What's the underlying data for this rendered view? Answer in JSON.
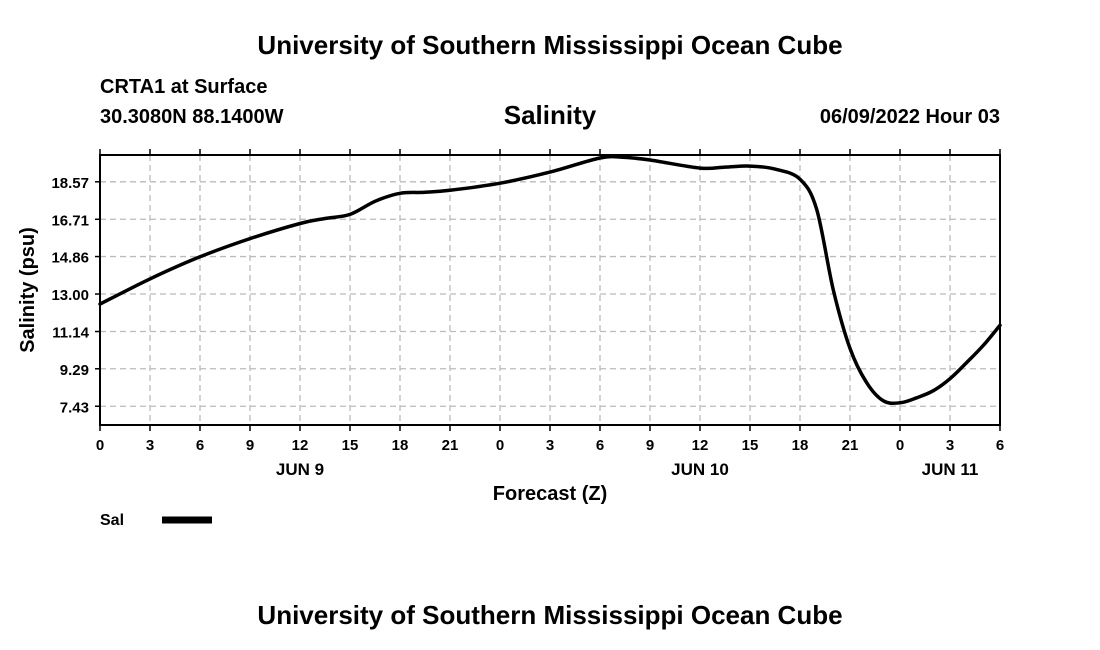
{
  "header": {
    "title": "University of Southern Mississippi Ocean Cube",
    "station": "CRTA1 at Surface",
    "coordinates": "30.3080N  88.1400W",
    "date_hour": "06/09/2022 Hour 03"
  },
  "footer": {
    "title": "University of Southern Mississippi Ocean Cube"
  },
  "chart_data": {
    "type": "line",
    "title": "Salinity",
    "xlabel": "Forecast (Z)",
    "ylabel": "Salinity (psu)",
    "x_unit": "hours from JUN 9 00Z",
    "xlim": [
      0,
      54
    ],
    "ylim": [
      6.5,
      19.9
    ],
    "yticks": [
      "7.43",
      "9.29",
      "11.14",
      "13.00",
      "14.86",
      "16.71",
      "18.57"
    ],
    "xticks": [
      "0",
      "3",
      "6",
      "9",
      "12",
      "15",
      "18",
      "21",
      "0",
      "3",
      "6",
      "9",
      "12",
      "15",
      "18",
      "21",
      "0",
      "3",
      "6"
    ],
    "day_labels": [
      {
        "label": "JUN 9",
        "hour": 12
      },
      {
        "label": "JUN 10",
        "hour": 36
      },
      {
        "label": "JUN 11",
        "hour": 51
      }
    ],
    "grid": true,
    "series": [
      {
        "name": "Sal",
        "color": "#000000",
        "x": [
          0,
          3,
          6,
          9,
          12,
          13.5,
          15,
          16.5,
          18,
          19.5,
          21,
          24,
          27,
          30,
          31.5,
          33,
          36,
          37.5,
          39,
          40.5,
          42,
          43,
          44,
          45,
          46,
          47,
          48,
          49,
          50,
          51,
          52,
          53,
          54
        ],
        "y": [
          12.5,
          13.75,
          14.85,
          15.75,
          16.5,
          16.75,
          16.95,
          17.6,
          18.0,
          18.05,
          18.15,
          18.5,
          19.05,
          19.75,
          19.78,
          19.65,
          19.25,
          19.3,
          19.35,
          19.2,
          18.7,
          17.2,
          13.2,
          10.3,
          8.6,
          7.7,
          7.6,
          7.85,
          8.2,
          8.8,
          9.6,
          10.45,
          11.45
        ]
      }
    ],
    "legend": [
      {
        "label": "Sal"
      }
    ]
  }
}
